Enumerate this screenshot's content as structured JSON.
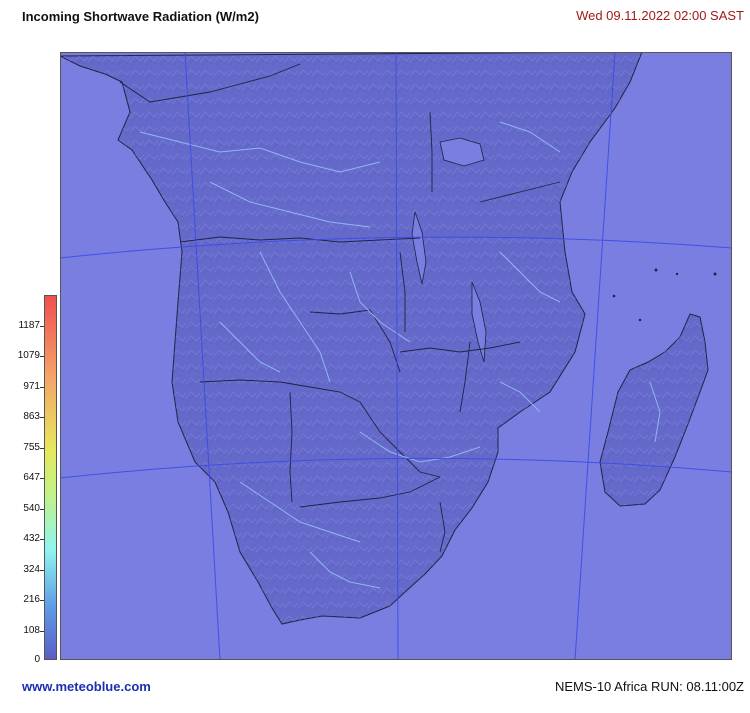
{
  "header": {
    "title": "Incoming Shortwave Radiation (W/m2)",
    "datetime": "Wed 09.11.2022  02:00 SAST"
  },
  "legend": {
    "ticks": [
      "1187",
      "1079",
      "971",
      "863",
      "755",
      "647",
      "540",
      "432",
      "324",
      "216",
      "108",
      "0"
    ],
    "colors": {
      "top": "#f24f4f",
      "upper": "#f4a36a",
      "yellow": "#e6e85c",
      "lightgreen": "#bff28a",
      "cyan": "#8ff5f0",
      "blue": "#5f9fe6",
      "bottom": "#5a5ec8"
    }
  },
  "map": {
    "ocean_color": "#7a7ee0",
    "land_color": "#6569c9",
    "river_color": "#8fb7f2",
    "border_color": "#222244",
    "grid_color": "#3a4be6"
  },
  "footer": {
    "source": "www.meteoblue.com",
    "model_run": "NEMS-10 Africa   RUN: 08.11:00Z"
  }
}
